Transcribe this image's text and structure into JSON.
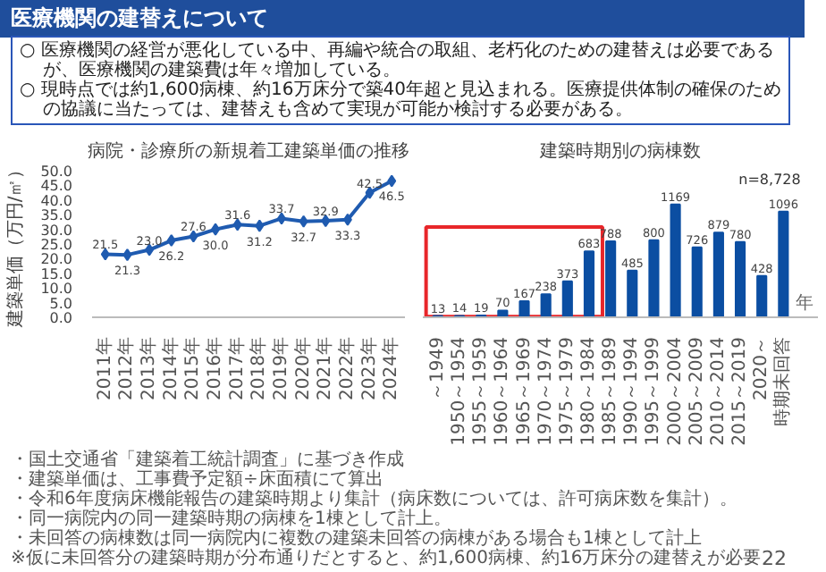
{
  "chart_data": [
    {
      "type": "other",
      "title": "医療機関の建替えについて",
      "annotations": [
        "○ 医療機関の経営が悪化している中、再編や統合の取組、老朽化のための建替えは必要であるが、医療機関の建築費は年々増加している。",
        "○ 現時点では約1,600病棟、約16万床分で築40年超と見込まれる。医療提供体制の確保のための協議に当たっては、建替えも含めて実現が可能か検討する必要がある。"
      ]
    },
    {
      "type": "line",
      "title": "病院・診療所の新規着工建築単価の推移",
      "ylabel": "建築単価（万円/㎡）",
      "categories": [
        "2011年",
        "2012年",
        "2013年",
        "2014年",
        "2015年",
        "2016年",
        "2017年",
        "2018年",
        "2019年",
        "2020年",
        "2021年",
        "2022年",
        "2023年",
        "2024年"
      ],
      "values": [
        21.5,
        21.3,
        23.0,
        26.2,
        27.6,
        30.0,
        31.6,
        31.2,
        33.7,
        32.7,
        32.9,
        33.3,
        42.5,
        46.5
      ],
      "color": "#1f5bb0",
      "marker": "diamond",
      "value_labels": [
        "21.5",
        "21.3",
        "23.0",
        "26.2",
        "27.6",
        "30.0",
        "31.6",
        "31.2",
        "33.7",
        "32.7",
        "32.9",
        "33.3",
        "42.5",
        "46.5"
      ],
      "ylim": [
        0,
        50
      ],
      "yticks": [
        {
          "value": 0,
          "label": "0.0"
        },
        {
          "value": 5,
          "label": "5.0"
        },
        {
          "value": 10,
          "label": "10.0"
        },
        {
          "value": 15,
          "label": "15.0"
        },
        {
          "value": 20,
          "label": "20.0"
        },
        {
          "value": 25,
          "label": "25.0"
        },
        {
          "value": 30,
          "label": "30.0"
        },
        {
          "value": 35,
          "label": "35.0"
        },
        {
          "value": 40,
          "label": "40.0"
        },
        {
          "value": 45,
          "label": "45.0"
        },
        {
          "value": 50,
          "label": "50.0"
        }
      ],
      "annotations": [
        "・国土交通省「建築着工統計調査」に基づき作成",
        "・建築単価は、工事費予定額÷床面積にて算出"
      ]
    },
    {
      "type": "bar",
      "title": "建築時期別の病棟数",
      "xlabel": "年",
      "categories": [
        "～1949",
        "1950～1954",
        "1955～1959",
        "1960～1964",
        "1965～1969",
        "1970～1974",
        "1975～1979",
        "1980～1984",
        "1985～1989",
        "1990～1994",
        "1995～1999",
        "2000～2004",
        "2005～2009",
        "2010～2014",
        "2015～2019",
        "2020～",
        "時期未回答"
      ],
      "values": [
        13,
        14,
        19,
        70,
        167,
        238,
        373,
        683,
        788,
        485,
        800,
        1169,
        726,
        879,
        780,
        428,
        1096
      ],
      "color": "#0b4ea2",
      "data_labels": true,
      "annotations": [
        "n=8,728",
        "・令和6年度病床機能報告の建築時期より集計（病床数については、許可病床数を集計）。",
        "・同一病院内の同一建築時期の病棟を1棟として計上。",
        "・未回答の病棟数は同一病院内に複数の建築未回答の病棟がある場合も1棟として計上",
        "※仮に未回答分の建築時期が分布通りだとすると、約1,600病棟、約16万床分の建替えが必要",
        "22"
      ]
    }
  ]
}
